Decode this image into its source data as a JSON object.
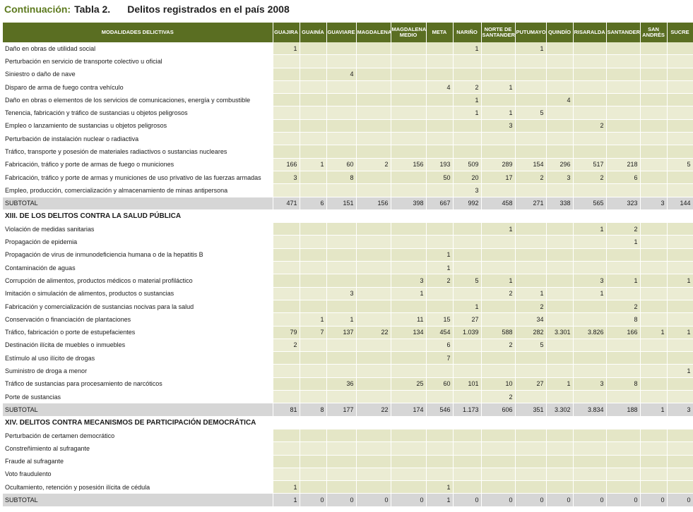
{
  "title": {
    "cont": "Continuación:",
    "num": "Tabla 2.",
    "text": "Delitos registrados en el país 2008"
  },
  "columns": [
    "MODALIDADES DELICTIVAS",
    "GUAJIRA",
    "GUAINÍA",
    "GUAVIARE",
    "MAGDALENA",
    "MAGDALENA MEDIO",
    "META",
    "NARIÑO",
    "NORTE DE SANTANDER",
    "PUTUMAYO",
    "QUINDÍO",
    "RISARALDA",
    "SANTANDER",
    "SAN ANDRÉS",
    "SUCRE"
  ],
  "rows": [
    {
      "type": "crime",
      "label": "Daño en obras de utilidad social",
      "values": [
        "1",
        "",
        "",
        "",
        "",
        "",
        "1",
        "",
        "1",
        "",
        "",
        "",
        "",
        ""
      ]
    },
    {
      "type": "crime",
      "label": "Perturbación en servicio de transporte colectivo u oficial",
      "values": [
        "",
        "",
        "",
        "",
        "",
        "",
        "",
        "",
        "",
        "",
        "",
        "",
        "",
        ""
      ]
    },
    {
      "type": "crime",
      "label": "Siniestro o daño de nave",
      "values": [
        "",
        "",
        "4",
        "",
        "",
        "",
        "",
        "",
        "",
        "",
        "",
        "",
        "",
        ""
      ]
    },
    {
      "type": "crime",
      "label": "Disparo de arma de fuego contra vehículo",
      "values": [
        "",
        "",
        "",
        "",
        "",
        "4",
        "2",
        "1",
        "",
        "",
        "",
        "",
        "",
        ""
      ]
    },
    {
      "type": "crime",
      "label": "Daño en obras o elementos de los servicios de comunicaciones, energía y combustible",
      "values": [
        "",
        "",
        "",
        "",
        "",
        "",
        "1",
        "",
        "",
        "4",
        "",
        "",
        "",
        ""
      ]
    },
    {
      "type": "crime",
      "label": "Tenencia, fabricación y tráfico de sustancias u objetos peligrosos",
      "values": [
        "",
        "",
        "",
        "",
        "",
        "",
        "1",
        "1",
        "5",
        "",
        "",
        "",
        "",
        ""
      ]
    },
    {
      "type": "crime",
      "label": "Empleo o lanzamiento de sustancias u objetos peligrosos",
      "values": [
        "",
        "",
        "",
        "",
        "",
        "",
        "",
        "3",
        "",
        "",
        "2",
        "",
        "",
        ""
      ]
    },
    {
      "type": "crime",
      "label": "Perturbación de instalación nuclear o radiactiva",
      "values": [
        "",
        "",
        "",
        "",
        "",
        "",
        "",
        "",
        "",
        "",
        "",
        "",
        "",
        ""
      ]
    },
    {
      "type": "crime",
      "label": "Tráfico, transporte y posesión de materiales radiactivos o sustancias nucleares",
      "values": [
        "",
        "",
        "",
        "",
        "",
        "",
        "",
        "",
        "",
        "",
        "",
        "",
        "",
        ""
      ]
    },
    {
      "type": "crime",
      "label": "Fabricación, tráfico y porte de armas de fuego o municiones",
      "values": [
        "166",
        "1",
        "60",
        "2",
        "156",
        "193",
        "509",
        "289",
        "154",
        "296",
        "517",
        "218",
        "",
        "5"
      ]
    },
    {
      "type": "crime",
      "label": "Fabricación, tráfico y porte de armas y municiones de uso privativo de las fuerzas armadas",
      "values": [
        "3",
        "",
        "8",
        "",
        "",
        "50",
        "20",
        "17",
        "2",
        "3",
        "2",
        "6",
        "",
        ""
      ]
    },
    {
      "type": "crime",
      "label": "Empleo, producción, comercialización y almacenamiento de minas antipersona",
      "values": [
        "",
        "",
        "",
        "",
        "",
        "",
        "3",
        "",
        "",
        "",
        "",
        "",
        "",
        ""
      ]
    },
    {
      "type": "sub",
      "label": "SUBTOTAL",
      "values": [
        "471",
        "6",
        "151",
        "156",
        "398",
        "667",
        "992",
        "458",
        "271",
        "338",
        "565",
        "323",
        "3",
        "144"
      ]
    },
    {
      "type": "sec",
      "label": "XIII. DE LOS DELITOS CONTRA LA SALUD PÚBLICA"
    },
    {
      "type": "crime",
      "label": "Violación de medidas sanitarias",
      "values": [
        "",
        "",
        "",
        "",
        "",
        "",
        "",
        "1",
        "",
        "",
        "1",
        "2",
        "",
        ""
      ]
    },
    {
      "type": "crime",
      "label": "Propagación de epidemia",
      "values": [
        "",
        "",
        "",
        "",
        "",
        "",
        "",
        "",
        "",
        "",
        "",
        "1",
        "",
        ""
      ]
    },
    {
      "type": "crime",
      "label": "Propagación de virus de inmunodeficiencia humana o de la hepatitis B",
      "values": [
        "",
        "",
        "",
        "",
        "",
        "1",
        "",
        "",
        "",
        "",
        "",
        "",
        "",
        ""
      ]
    },
    {
      "type": "crime",
      "label": "Contaminación de aguas",
      "values": [
        "",
        "",
        "",
        "",
        "",
        "1",
        "",
        "",
        "",
        "",
        "",
        "",
        "",
        ""
      ]
    },
    {
      "type": "crime",
      "label": "Corrupción de alimentos, productos médicos o material profiláctico",
      "values": [
        "",
        "",
        "",
        "",
        "3",
        "2",
        "5",
        "1",
        "",
        "",
        "3",
        "1",
        "",
        "1"
      ]
    },
    {
      "type": "crime",
      "label": "Imitación o simulación de alimentos, productos o sustancias",
      "values": [
        "",
        "",
        "3",
        "",
        "1",
        "",
        "",
        "2",
        "1",
        "",
        "1",
        "",
        "",
        ""
      ]
    },
    {
      "type": "crime",
      "label": "Fabricación y comercialización de sustancias nocivas para la salud",
      "values": [
        "",
        "",
        "",
        "",
        "",
        "",
        "1",
        "",
        "2",
        "",
        "",
        "2",
        "",
        ""
      ]
    },
    {
      "type": "crime",
      "label": "Conservación o financiación de plantaciones",
      "values": [
        "",
        "1",
        "1",
        "",
        "11",
        "15",
        "27",
        "",
        "34",
        "",
        "",
        "8",
        "",
        ""
      ]
    },
    {
      "type": "crime",
      "label": "Tráfico, fabricación o porte de estupefacientes",
      "values": [
        "79",
        "7",
        "137",
        "22",
        "134",
        "454",
        "1.039",
        "588",
        "282",
        "3.301",
        "3.826",
        "166",
        "1",
        "1"
      ]
    },
    {
      "type": "crime",
      "label": "Destinación ilícita de muebles o inmuebles",
      "values": [
        "2",
        "",
        "",
        "",
        "",
        "6",
        "",
        "2",
        "5",
        "",
        "",
        "",
        "",
        ""
      ]
    },
    {
      "type": "crime",
      "label": "Estímulo al uso ilícito de drogas",
      "values": [
        "",
        "",
        "",
        "",
        "",
        "7",
        "",
        "",
        "",
        "",
        "",
        "",
        "",
        ""
      ]
    },
    {
      "type": "crime",
      "label": "Suministro de droga a menor",
      "values": [
        "",
        "",
        "",
        "",
        "",
        "",
        "",
        "",
        "",
        "",
        "",
        "",
        "",
        "1"
      ]
    },
    {
      "type": "crime",
      "label": "Tráfico de sustancias para procesamiento de narcóticos",
      "values": [
        "",
        "",
        "36",
        "",
        "25",
        "60",
        "101",
        "10",
        "27",
        "1",
        "3",
        "8",
        "",
        ""
      ]
    },
    {
      "type": "crime",
      "label": "Porte de sustancias",
      "values": [
        "",
        "",
        "",
        "",
        "",
        "",
        "",
        "2",
        "",
        "",
        "",
        "",
        "",
        ""
      ]
    },
    {
      "type": "sub",
      "label": "SUBTOTAL",
      "values": [
        "81",
        "8",
        "177",
        "22",
        "174",
        "546",
        "1.173",
        "606",
        "351",
        "3.302",
        "3.834",
        "188",
        "1",
        "3"
      ]
    },
    {
      "type": "sec",
      "label": "XIV. DELITOS CONTRA MECANISMOS DE PARTICIPACIÓN DEMOCRÁTICA"
    },
    {
      "type": "crime",
      "label": "Perturbación de certamen democrático",
      "values": [
        "",
        "",
        "",
        "",
        "",
        "",
        "",
        "",
        "",
        "",
        "",
        "",
        "",
        ""
      ]
    },
    {
      "type": "crime",
      "label": "Constreñimiento al sufragante",
      "values": [
        "",
        "",
        "",
        "",
        "",
        "",
        "",
        "",
        "",
        "",
        "",
        "",
        "",
        ""
      ]
    },
    {
      "type": "crime",
      "label": "Fraude al sufragante",
      "values": [
        "",
        "",
        "",
        "",
        "",
        "",
        "",
        "",
        "",
        "",
        "",
        "",
        "",
        ""
      ]
    },
    {
      "type": "crime",
      "label": "Voto fraudulento",
      "values": [
        "",
        "",
        "",
        "",
        "",
        "",
        "",
        "",
        "",
        "",
        "",
        "",
        "",
        ""
      ]
    },
    {
      "type": "crime",
      "label": "Ocultamiento, retención y posesión ilícita de cédula",
      "values": [
        "1",
        "",
        "",
        "",
        "",
        "1",
        "",
        "",
        "",
        "",
        "",
        "",
        "",
        ""
      ]
    },
    {
      "type": "sub",
      "label": "SUBTOTAL",
      "values": [
        "1",
        "0",
        "0",
        "0",
        "0",
        "1",
        "0",
        "0",
        "0",
        "0",
        "0",
        "0",
        "0",
        "0"
      ]
    }
  ]
}
